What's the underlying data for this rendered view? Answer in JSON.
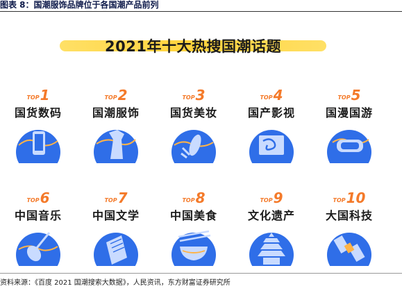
{
  "caption": "图表 8：国潮服饰品牌位于各国潮产品前列",
  "banner_title": "2021年十大热搜国潮话题",
  "rank_prefix": "TOP",
  "topics": [
    {
      "rank": "1",
      "name": "国货数码",
      "icon": "smartphone-icon"
    },
    {
      "rank": "2",
      "name": "国潮服饰",
      "icon": "garment-icon"
    },
    {
      "rank": "3",
      "name": "国货美妆",
      "icon": "cosmetics-icon"
    },
    {
      "rank": "4",
      "name": "国产影视",
      "icon": "film-screen-icon"
    },
    {
      "rank": "5",
      "name": "国漫国游",
      "icon": "vr-headset-icon"
    },
    {
      "rank": "6",
      "name": "中国音乐",
      "icon": "pipa-instrument-icon"
    },
    {
      "rank": "7",
      "name": "中国文学",
      "icon": "book-icon"
    },
    {
      "rank": "8",
      "name": "中国美食",
      "icon": "noodle-bowl-icon"
    },
    {
      "rank": "9",
      "name": "文化遗产",
      "icon": "temple-of-heaven-icon"
    },
    {
      "rank": "10",
      "name": "大国科技",
      "icon": "satellite-icon"
    }
  ],
  "colors": {
    "accent_orange": "#f47a2a",
    "banner_yellow": "#ffd33b",
    "icon_blue": "#2f6ee8",
    "icon_light": "#c9dbff"
  },
  "source": "资料来源：《百度 2021 国潮搜索大数据》，人民资讯，东方财富证券研究所"
}
